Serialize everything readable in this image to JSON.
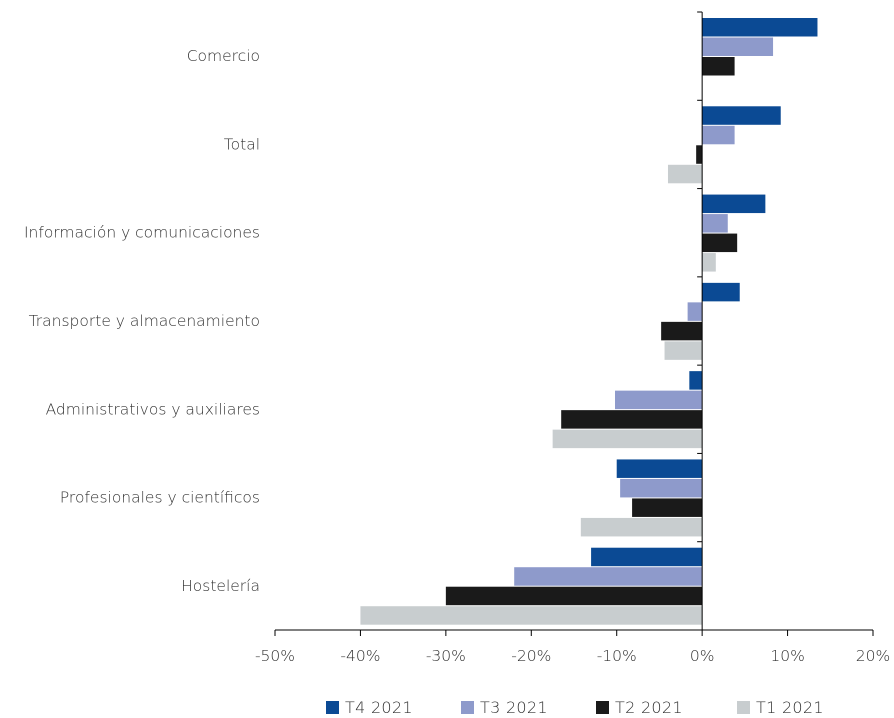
{
  "chart_data": {
    "type": "bar",
    "orientation": "horizontal",
    "categories": [
      "Comercio",
      "Total",
      "Información y comunicaciones",
      "Transporte y almacenamiento",
      "Administrativos y auxiliares",
      "Profesionales y científicos",
      "Hostelería"
    ],
    "series": [
      {
        "name": "T4 2021",
        "color": "#0b4a94",
        "values": [
          13.5,
          9.2,
          7.4,
          4.4,
          -1.5,
          -10.0,
          -13.0
        ]
      },
      {
        "name": "T3 2021",
        "color": "#8e9acb",
        "values": [
          8.3,
          3.8,
          3.0,
          -1.7,
          -10.2,
          -9.6,
          -22.0
        ]
      },
      {
        "name": "T2 2021",
        "color": "#1a1a1a",
        "values": [
          3.8,
          -0.7,
          4.1,
          -4.8,
          -16.5,
          -8.2,
          -30.0
        ]
      },
      {
        "name": "T1 2021",
        "color": "#c8cdcf",
        "values": [
          0.0,
          -4.0,
          1.6,
          -4.4,
          -17.5,
          -14.2,
          -40.0
        ]
      }
    ],
    "xlim": [
      -50,
      20
    ],
    "xticks": [
      -50,
      -40,
      -30,
      -20,
      -10,
      0,
      10,
      20
    ],
    "xtick_labels": [
      "-50%",
      "-40%",
      "-30%",
      "-20%",
      "-10%",
      "0%",
      "10%",
      "20%"
    ],
    "legend_position": "bottom",
    "grid": false
  }
}
